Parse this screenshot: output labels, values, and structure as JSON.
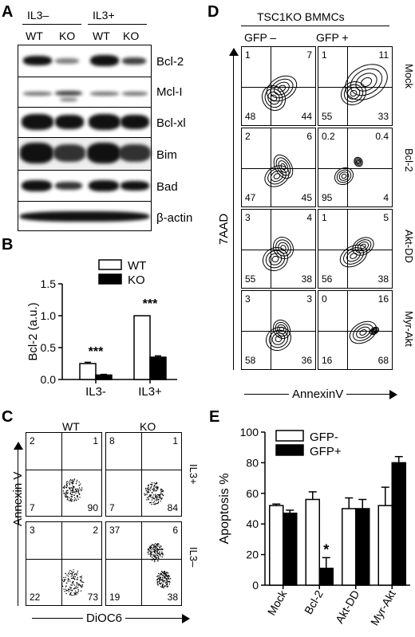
{
  "panelA": {
    "label": "A",
    "groups": [
      "IL3–",
      "IL3+"
    ],
    "lanes": [
      "WT",
      "KO",
      "WT",
      "KO"
    ],
    "rows": [
      "Bcl-2",
      "Mcl-I",
      "Bcl-xl",
      "Bim",
      "Bad",
      "β-actin"
    ]
  },
  "panelB": {
    "label": "B",
    "chart_data": {
      "type": "bar",
      "categories": [
        "IL3-",
        "IL3+"
      ],
      "series": [
        {
          "name": "WT",
          "values": [
            0.25,
            1.0
          ],
          "errors": [
            0.02,
            0.0
          ],
          "color": "#ffffff"
        },
        {
          "name": "KO",
          "values": [
            0.07,
            0.35
          ],
          "errors": [
            0.01,
            0.02
          ],
          "color": "#000000"
        }
      ],
      "ylabel": "Bcl-2 (a.u.)",
      "ylim": [
        0,
        1.5
      ],
      "yticks": [
        "0.0",
        "0.5",
        "1.0",
        "1.5"
      ],
      "annotations": [
        "***",
        "***"
      ]
    }
  },
  "panelC": {
    "label": "C",
    "cols": [
      "WT",
      "KO"
    ],
    "rows": [
      "IL3+",
      "IL3–"
    ],
    "xlabel": "DiOC6",
    "ylabel": "Annexin V",
    "quadrants": [
      [
        [
          "2",
          "1",
          "7",
          "90"
        ],
        [
          "8",
          "1",
          "7",
          "84"
        ]
      ],
      [
        [
          "3",
          "2",
          "22",
          "73"
        ],
        [
          "37",
          "6",
          "19",
          "38"
        ]
      ]
    ]
  },
  "panelD": {
    "label": "D",
    "title": "TSC1KO BMMCs",
    "cols": [
      "GFP –",
      "GFP +"
    ],
    "rows": [
      "Mock",
      "Bcl-2",
      "Akt-DD",
      "Myr-Akt"
    ],
    "xlabel": "AnnexinV",
    "ylabel": "7AAD",
    "quadrants": [
      [
        [
          "1",
          "7",
          "48",
          "44"
        ],
        [
          "1",
          "11",
          "55",
          "33"
        ]
      ],
      [
        [
          "2",
          "6",
          "47",
          "45"
        ],
        [
          "0.2",
          "0.4",
          "95",
          "4"
        ]
      ],
      [
        [
          "3",
          "4",
          "55",
          "38"
        ],
        [
          "1",
          "5",
          "56",
          "38"
        ]
      ],
      [
        [
          "3",
          "3",
          "58",
          "36"
        ],
        [
          "0",
          "16",
          "16",
          "68"
        ]
      ]
    ]
  },
  "panelE": {
    "label": "E",
    "chart_data": {
      "type": "bar",
      "categories": [
        "Mock",
        "Bcl-2",
        "Akt-DD",
        "Myr-Akt"
      ],
      "series": [
        {
          "name": "GFP-",
          "values": [
            52,
            56,
            50,
            52
          ],
          "errors": [
            1,
            5,
            7,
            12
          ],
          "color": "#ffffff"
        },
        {
          "name": "GFP+",
          "values": [
            47,
            11,
            50,
            80
          ],
          "errors": [
            2,
            7,
            6,
            4
          ],
          "color": "#000000"
        }
      ],
      "ylabel": "Apoptosis %",
      "ylim": [
        0,
        100
      ],
      "yticks": [
        "0",
        "20",
        "40",
        "60",
        "80",
        "100"
      ],
      "annotations": [
        "*"
      ]
    }
  }
}
